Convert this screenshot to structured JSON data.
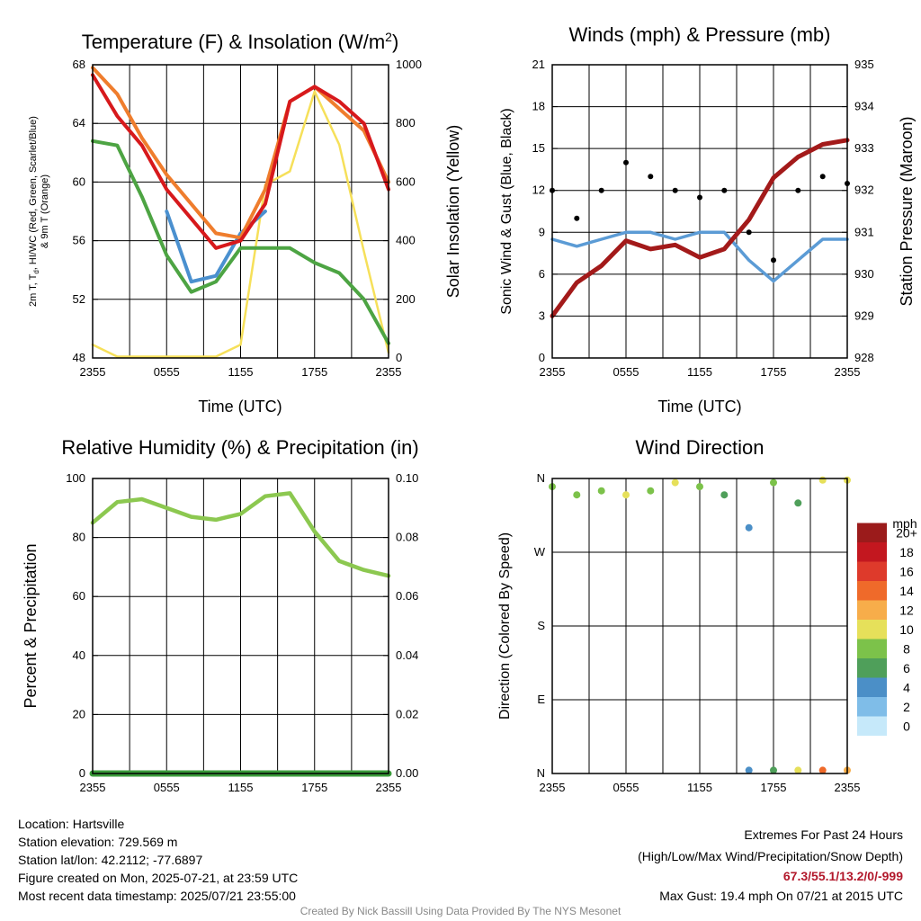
{
  "chart_data": [
    {
      "type": "line",
      "title": "Temperature (F) & Insolation (W/m",
      "title_sup": "2",
      "title_end": ")",
      "xlabel": "Time (UTC)",
      "ylabel_left_lines": [
        "2m T, T",
        "d",
        ", HI/WC (Red, Green, Scarlet/Blue)",
        "& 9m T (Orange)"
      ],
      "ylabel_right": "Solar Insolation (Yellow)",
      "x_ticks": [
        "2355",
        "0555",
        "1155",
        "1755",
        "2355"
      ],
      "ylim": [
        48,
        68
      ],
      "y_ticks": [
        "48",
        "52",
        "56",
        "60",
        "64",
        "68"
      ],
      "y2lim": [
        0,
        1100
      ],
      "y2_ticks": [
        "0",
        "200",
        "400",
        "600",
        "800",
        "1000"
      ],
      "x_hours": [
        0,
        2,
        4,
        6,
        8,
        10,
        12,
        14,
        16,
        18,
        20,
        22,
        24
      ],
      "series": [
        {
          "color": "#ef7d2d",
          "values": [
            67.8,
            66,
            63,
            60.5,
            58.5,
            56.5,
            56.2,
            59.5,
            65.5,
            66.5,
            65,
            63.5,
            60
          ]
        },
        {
          "color": "#d7191c",
          "values": [
            67.3,
            64.5,
            62.5,
            59.5,
            57.5,
            55.5,
            56,
            58.5,
            65.5,
            66.5,
            65.5,
            64,
            59.5
          ]
        },
        {
          "color": "#4da443",
          "values": [
            62.8,
            62.5,
            59,
            55,
            52.5,
            53.2,
            55.5,
            55.5,
            55.5,
            54.5,
            53.8,
            52,
            49
          ]
        },
        {
          "color": "#4a90cf",
          "values": [
            null,
            null,
            null,
            58,
            53.2,
            53.6,
            56.5,
            58,
            null,
            null,
            null,
            null,
            57.5
          ]
        },
        {
          "color": "#f6e05a",
          "axis": "right",
          "values": [
            50,
            5,
            5,
            5,
            5,
            5,
            50,
            650,
            700,
            1000,
            800,
            400,
            20
          ]
        }
      ]
    },
    {
      "type": "scatter",
      "title": "Winds (mph) & Pressure (mb)",
      "xlabel": "Time (UTC)",
      "ylabel_left": "Sonic Wind & Gust (Blue, Black)",
      "ylabel_right": "Station Pressure (Maroon)",
      "x_ticks": [
        "2355",
        "0555",
        "1155",
        "1755",
        "2355"
      ],
      "ylim": [
        0,
        21
      ],
      "y_ticks": [
        "0",
        "3",
        "6",
        "9",
        "12",
        "15",
        "18",
        "21"
      ],
      "y2lim": [
        928,
        935
      ],
      "y2_ticks": [
        "928",
        "929",
        "930",
        "931",
        "932",
        "933",
        "934",
        "935"
      ],
      "x_hours": [
        0,
        2,
        4,
        6,
        8,
        10,
        12,
        14,
        16,
        18,
        20,
        22,
        24
      ],
      "series": [
        {
          "color": "#5b9bd5",
          "values": [
            8.5,
            8,
            8.5,
            9,
            9,
            8.5,
            9,
            9,
            7,
            5.5,
            7,
            8.5,
            8.5
          ]
        },
        {
          "color": "#000000",
          "values": [
            12,
            10,
            12,
            14,
            13,
            12,
            11.5,
            12,
            9,
            7,
            12,
            13,
            12.5
          ]
        },
        {
          "color": "#a31a1a",
          "axis": "right",
          "values": [
            929,
            929.8,
            930.2,
            930.8,
            930.6,
            930.7,
            930.4,
            930.6,
            931.3,
            932.3,
            932.8,
            933.1,
            933.2
          ]
        }
      ]
    },
    {
      "type": "line",
      "title": "Relative Humidity (%) & Precipitation (in)",
      "ylabel_left": "Percent & Precipitation",
      "x_ticks": [
        "2355",
        "0555",
        "1155",
        "1755",
        "2355"
      ],
      "ylim": [
        0,
        100
      ],
      "y_ticks": [
        "0",
        "20",
        "40",
        "60",
        "80",
        "100"
      ],
      "y2lim": [
        0,
        0.1
      ],
      "y2_ticks": [
        "0.00",
        "0.02",
        "0.04",
        "0.06",
        "0.08",
        "0.10"
      ],
      "x_hours": [
        0,
        2,
        4,
        6,
        8,
        10,
        12,
        14,
        16,
        18,
        20,
        22,
        24
      ],
      "series": [
        {
          "color": "#8cc850",
          "values": [
            85,
            92,
            93,
            90,
            87,
            86,
            88,
            94,
            95,
            82,
            72,
            69,
            67
          ]
        },
        {
          "color": "#3a9a3a",
          "axis": "right",
          "values": [
            0,
            0,
            0,
            0,
            0,
            0,
            0,
            0,
            0,
            0,
            0,
            0,
            0
          ]
        }
      ]
    },
    {
      "type": "scatter",
      "title": "Wind Direction",
      "ylabel_left": "Direction (Colored By Speed)",
      "x_ticks": [
        "2355",
        "0555",
        "1155",
        "1755",
        "2355"
      ],
      "ylim": [
        0,
        360
      ],
      "y_ticks": [
        "N",
        "E",
        "S",
        "W",
        "N"
      ],
      "x_hours": [
        0,
        2,
        4,
        6,
        8,
        10,
        12,
        14,
        16,
        18,
        20,
        22,
        24
      ],
      "series": [
        {
          "name": "direction",
          "values": [
            350,
            340,
            345,
            340,
            345,
            355,
            350,
            340,
            300,
            355,
            330,
            358,
            358
          ]
        },
        {
          "name": "speed",
          "values": [
            8,
            7,
            8,
            9,
            8,
            9,
            7,
            6,
            3,
            8,
            5,
            9,
            10
          ]
        },
        {
          "name": "north-wrap",
          "values": [
            null,
            null,
            null,
            null,
            null,
            null,
            null,
            null,
            4,
            5,
            10,
            14,
            11
          ]
        }
      ],
      "legend_title": "mph",
      "legend_labels": [
        "0",
        "2",
        "4",
        "6",
        "8",
        "10",
        "12",
        "14",
        "16",
        "18",
        "20+"
      ],
      "legend_colors": [
        "#c6e9fa",
        "#7fbde8",
        "#4b8fc7",
        "#4f9f5a",
        "#7cc24a",
        "#e6e05a",
        "#f7ad4a",
        "#ef6a2a",
        "#de3a2b",
        "#c3171f",
        "#9b1b1b"
      ]
    }
  ],
  "footer": {
    "location": "Location: Hartsville",
    "elevation": "Station elevation: 729.569 m",
    "latlon": "Station lat/lon: 42.2112; -77.6897",
    "created": "Figure created on Mon, 2025-07-21, at 23:59 UTC",
    "recent": "Most recent data timestamp: 2025/07/21 23:55:00",
    "extremes_title": "Extremes For Past 24 Hours",
    "extremes_subtitle": "(High/Low/Max Wind/Precipitation/Snow Depth)",
    "extremes_values": "67.3/55.1/13.2/0/-999",
    "max_gust": "Max Gust: 19.4 mph On 07/21 at 2015 UTC",
    "credit": "Created By Nick Bassill Using Data Provided By The NYS Mesonet"
  }
}
